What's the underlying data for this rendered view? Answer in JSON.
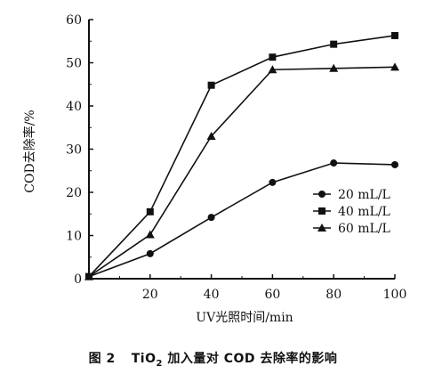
{
  "caption": {
    "figure_no": "图 2",
    "text_before": "TiO",
    "subscript": "2",
    "text_after": " 加入量对 COD 去除率的影响"
  },
  "chart_data": {
    "type": "line",
    "xlabel": "UV光照时间/min",
    "ylabel": "COD去除率/%",
    "xlim": [
      0,
      100
    ],
    "ylim": [
      0,
      60
    ],
    "x_ticks": [
      20,
      40,
      60,
      80,
      100
    ],
    "y_ticks": [
      0,
      10,
      20,
      30,
      40,
      50,
      60
    ],
    "grid": false,
    "legend_position": "right-lower",
    "x": [
      0,
      20,
      40,
      60,
      80,
      100
    ],
    "series": [
      {
        "name": "20 mL/L",
        "marker": "circle",
        "values": [
          0.5,
          5.8,
          14.2,
          22.3,
          26.8,
          26.4
        ]
      },
      {
        "name": "40 mL/L",
        "marker": "square",
        "values": [
          0.5,
          15.5,
          44.8,
          51.3,
          54.3,
          56.3
        ]
      },
      {
        "name": "60 mL/L",
        "marker": "triangle",
        "values": [
          0.5,
          10.2,
          33.0,
          48.4,
          48.7,
          49.0
        ]
      }
    ]
  }
}
